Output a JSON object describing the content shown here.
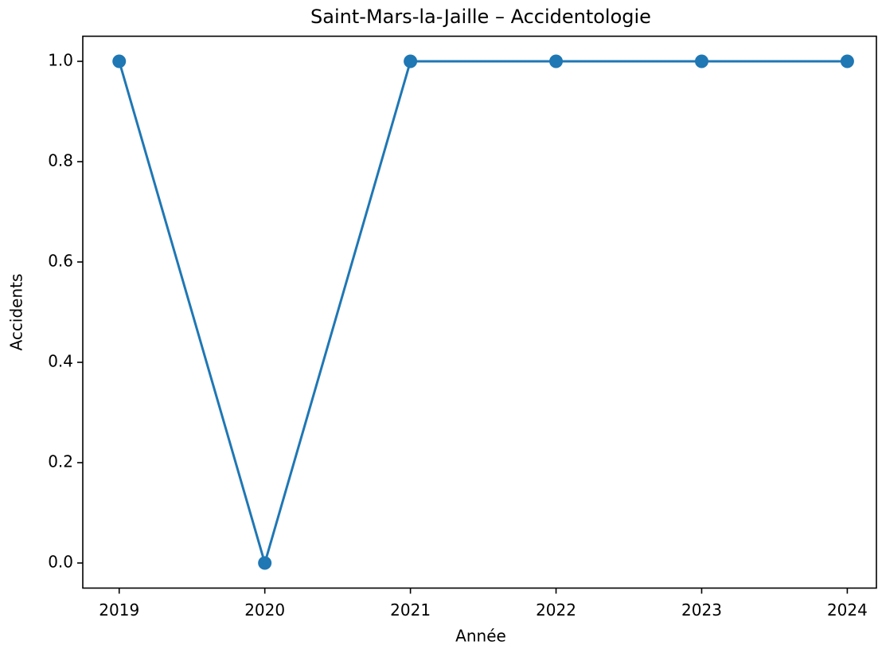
{
  "chart_data": {
    "type": "line",
    "title": "Saint-Mars-la-Jaille – Accidentologie",
    "xlabel": "Année",
    "ylabel": "Accidents",
    "x": [
      2019,
      2020,
      2021,
      2022,
      2023,
      2024
    ],
    "series": [
      {
        "name": "Accidents",
        "color": "#1f77b4",
        "values": [
          1,
          0,
          1,
          1,
          1,
          1
        ]
      }
    ],
    "xlim": [
      2018.75,
      2024.2
    ],
    "xticks": [
      2019,
      2020,
      2021,
      2022,
      2023,
      2024
    ],
    "ylim": [
      -0.05,
      1.05
    ],
    "yticks": [
      {
        "value": 0,
        "label": "0.0"
      },
      0.2,
      0.4,
      0.6,
      0.8,
      {
        "value": 1,
        "label": "1.0"
      }
    ],
    "grid": false,
    "markers": true
  }
}
